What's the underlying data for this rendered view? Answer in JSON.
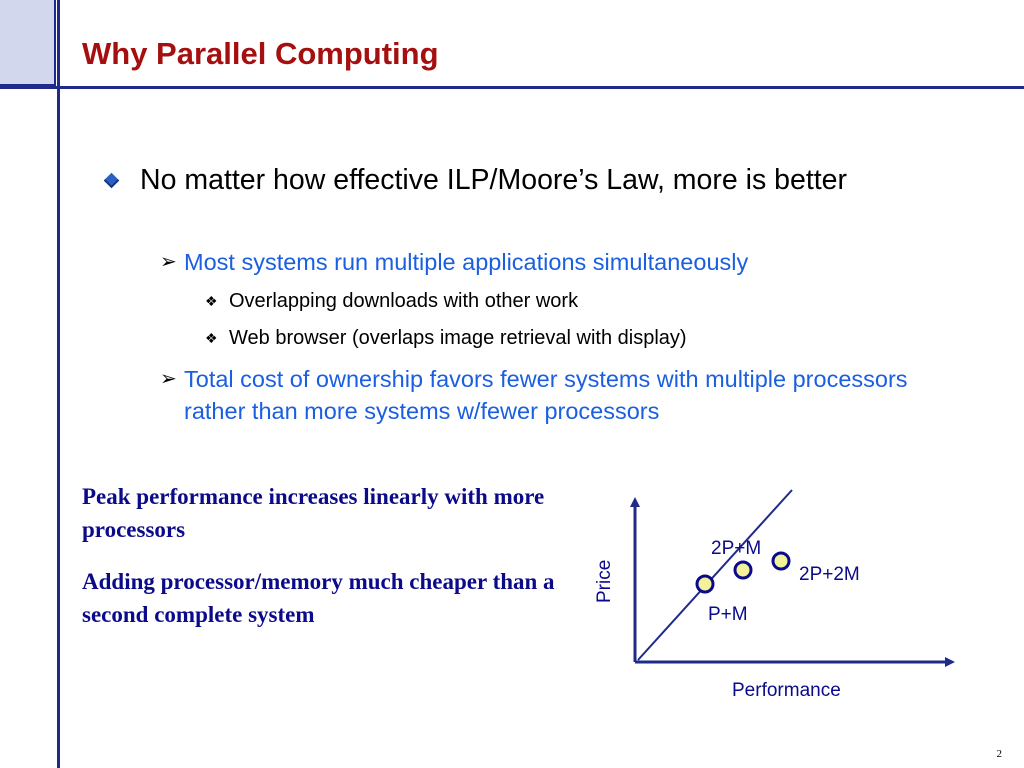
{
  "slide": {
    "title": "Why Parallel Computing",
    "page_number": "2"
  },
  "bullets": {
    "main": "No matter how effective ILP/Moore’s Law, more is better",
    "sub1": "Most systems run multiple applications simultaneously",
    "sub1_items": [
      "Overlapping downloads with other work",
      "Web browser (overlaps image retrieval with display)"
    ],
    "sub2": "Total cost of ownership favors fewer systems with multiple processors rather than more systems w/fewer processors"
  },
  "notes": {
    "note1": "Peak performance increases linearly with more processors",
    "note2": "Adding processor/memory much cheaper than a second complete system"
  },
  "diagram": {
    "x_label": "Performance",
    "y_label": "Price",
    "points": [
      "P+M",
      "2P+M",
      "2P+2M"
    ],
    "colors": {
      "axis": "#1f2a8a",
      "line": "#1f2a8a",
      "point_fill": "#f3f19a",
      "point_stroke": "#0a0a8a"
    }
  }
}
